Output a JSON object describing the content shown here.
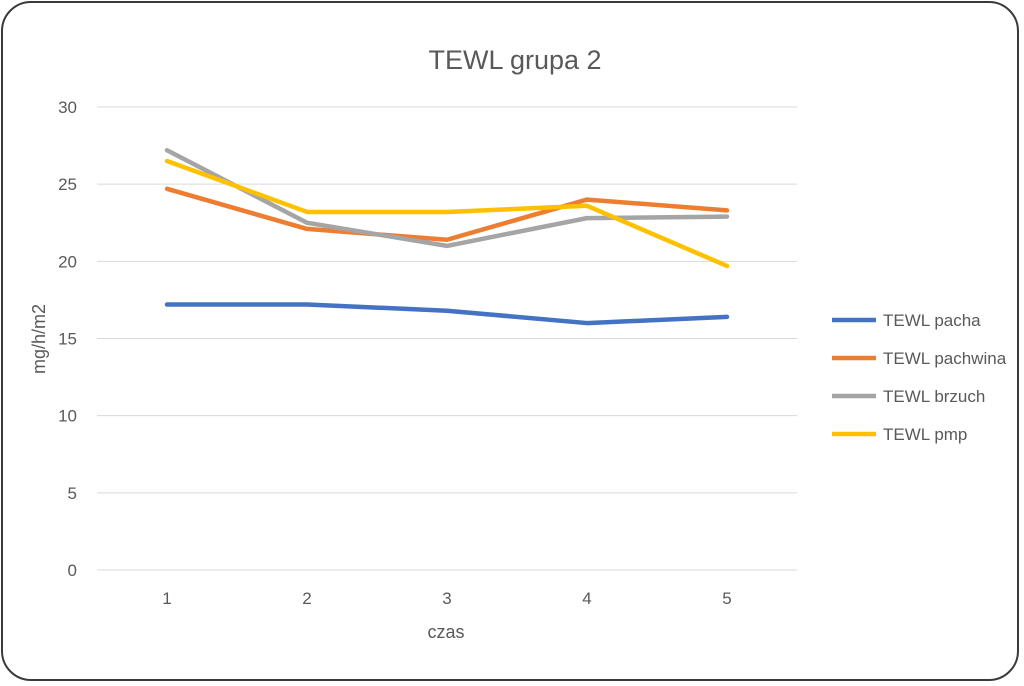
{
  "chart_data": {
    "type": "line",
    "title": "TEWL grupa 2",
    "xlabel": "czas",
    "ylabel": "mg/h/m2",
    "categories": [
      "1",
      "2",
      "3",
      "4",
      "5"
    ],
    "ylim": [
      0,
      30
    ],
    "yticks": [
      "0",
      "5",
      "10",
      "15",
      "20",
      "25",
      "30"
    ],
    "grid": true,
    "legend_position": "right",
    "series": [
      {
        "name": "TEWL pacha",
        "color": "#4472C4",
        "values": [
          17.2,
          17.2,
          16.8,
          16.0,
          16.4
        ]
      },
      {
        "name": "TEWL pachwina",
        "color": "#ED7D31",
        "values": [
          24.7,
          22.1,
          21.4,
          24.0,
          23.3
        ]
      },
      {
        "name": "TEWL brzuch",
        "color": "#A5A5A5",
        "values": [
          27.2,
          22.5,
          21.0,
          22.8,
          22.9
        ]
      },
      {
        "name": "TEWL pmp",
        "color": "#FFC000",
        "values": [
          26.5,
          23.2,
          23.2,
          23.6,
          19.7
        ]
      }
    ]
  }
}
